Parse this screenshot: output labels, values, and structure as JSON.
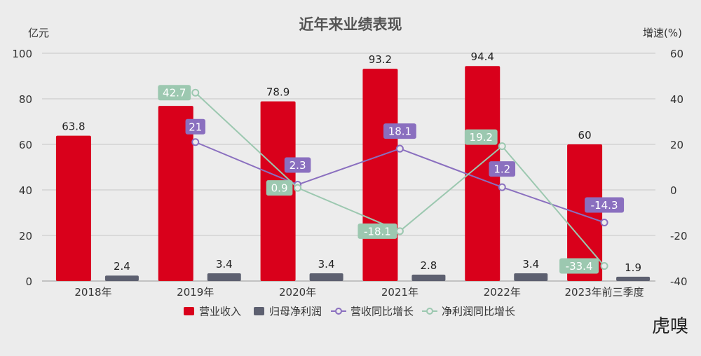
{
  "chart_data": {
    "type": "bar",
    "title": "近年来业绩表现",
    "y_left_unit": "亿元",
    "y_right_unit": "增速(%)",
    "ylim_left": [
      0,
      100
    ],
    "ylim_right": [
      -40,
      60
    ],
    "y_left_ticks": [
      "0",
      "20",
      "40",
      "60",
      "80",
      "100"
    ],
    "y_right_ticks": [
      "-40",
      "-20",
      "0",
      "20",
      "40",
      "60"
    ],
    "categories": [
      "2018年",
      "2019年",
      "2020年",
      "2021年",
      "2022年",
      "2023年前三季度"
    ],
    "bar_series": [
      {
        "name": "营业收入",
        "color": "#d9001b",
        "values": [
          63.8,
          76.9,
          78.9,
          93.2,
          94.4,
          60
        ],
        "labels": [
          "63.8",
          "",
          "78.9",
          "93.2",
          "94.4",
          "60"
        ]
      },
      {
        "name": "归母净利润",
        "color": "#5d6070",
        "values": [
          2.4,
          3.4,
          3.4,
          2.8,
          3.4,
          1.9
        ],
        "labels": [
          "2.4",
          "3.4",
          "3.4",
          "2.8",
          "3.4",
          "1.9"
        ]
      }
    ],
    "line_series": [
      {
        "name": "营收同比增长",
        "color": "#8a6fbf",
        "values": [
          null,
          21,
          2.3,
          18.1,
          1.2,
          -14.3
        ],
        "labels": [
          "",
          "21",
          "2.3",
          "18.1",
          "1.2",
          "-14.3"
        ]
      },
      {
        "name": "净利润同比增长",
        "color": "#9cc8b0",
        "values": [
          null,
          42.7,
          0.9,
          -18.1,
          19.2,
          -33.4
        ],
        "labels": [
          "",
          "42.7",
          "0.9",
          "-18.1",
          "19.2",
          "-33.4"
        ]
      }
    ],
    "grid": true,
    "legend_position": "bottom"
  },
  "watermark_text": "虎嗅"
}
